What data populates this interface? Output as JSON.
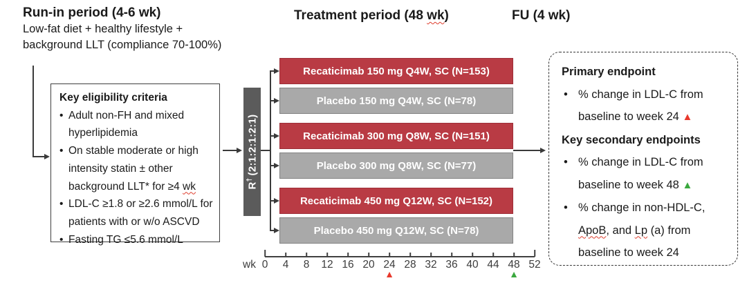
{
  "colors": {
    "active_arm": "#B93B44",
    "placebo_arm": "#A9A9A9",
    "randomization_bar": "#5B5B5B",
    "primary_marker": "#E8392C",
    "secondary_marker": "#3AA83E",
    "squiggle": "#DE3B2B"
  },
  "run_in": {
    "title": "Run-in period (4-6 wk)",
    "line1": "Low-fat diet + healthy lifestyle +",
    "line2": "background LLT (compliance 70-100%)"
  },
  "treatment": {
    "title_pre": "Treatment period (48 ",
    "title_wk": "wk",
    "title_post": ")"
  },
  "follow_up": {
    "title": "FU (4 wk)"
  },
  "eligibility": {
    "title": "Key eligibility criteria",
    "items": [
      {
        "text": "Adult non-FH and mixed hyperlipidemia",
        "squiggle": ""
      },
      {
        "text": "On stable moderate or high intensity statin ± other background LLT* for ≥4 ",
        "squiggle": "wk"
      },
      {
        "text": "LDL-C ≥1.8 or ≥2.6 mmol/L for patients with or w/o ASCVD",
        "squiggle": ""
      },
      {
        "text": "Fasting TG ≤5.6 mmol/L",
        "squiggle": ""
      }
    ]
  },
  "randomization": {
    "label": "R",
    "sup": "†",
    "ratio": "(2:1:2:1:2:1)"
  },
  "arms": [
    {
      "label": "Recaticimab 150 mg Q4W, SC (N=153)",
      "type": "active"
    },
    {
      "label": "Placebo 150 mg Q4W, SC (N=78)",
      "type": "placebo"
    },
    {
      "label": "Recaticimab 300 mg Q8W, SC (N=151)",
      "type": "active"
    },
    {
      "label": "Placebo 300 mg Q8W, SC (N=77)",
      "type": "placebo"
    },
    {
      "label": "Recaticimab 450 mg Q12W, SC (N=152)",
      "type": "active"
    },
    {
      "label": "Placebo 450 mg Q12W, SC (N=78)",
      "type": "placebo"
    }
  ],
  "axis": {
    "unit": "wk",
    "max_week": 52,
    "ticks": [
      "0",
      "4",
      "8",
      "12",
      "16",
      "20",
      "24",
      "28",
      "32",
      "36",
      "40",
      "44",
      "48",
      "52"
    ],
    "markers": [
      {
        "week": 24,
        "symbol": "▲",
        "color": "#E8392C"
      },
      {
        "week": 48,
        "symbol": "▲",
        "color": "#3AA83E"
      }
    ]
  },
  "endpoints": {
    "primary_title": "Primary endpoint",
    "primary": {
      "line1": "% change in LDL-C from",
      "line2": "baseline to week 24 ",
      "marker": "▲"
    },
    "secondary_title": "Key secondary endpoints",
    "secondary1": {
      "line1": "% change in LDL-C from",
      "line2": "baseline to week 48 ",
      "marker": "▲"
    },
    "secondary2": {
      "line1": "% change in non-HDL-C,",
      "seg_apob": "ApoB",
      "seg_mid": ", and ",
      "seg_lp": "Lp",
      "seg_end": " (a) from",
      "line3": "baseline to week 24"
    }
  }
}
